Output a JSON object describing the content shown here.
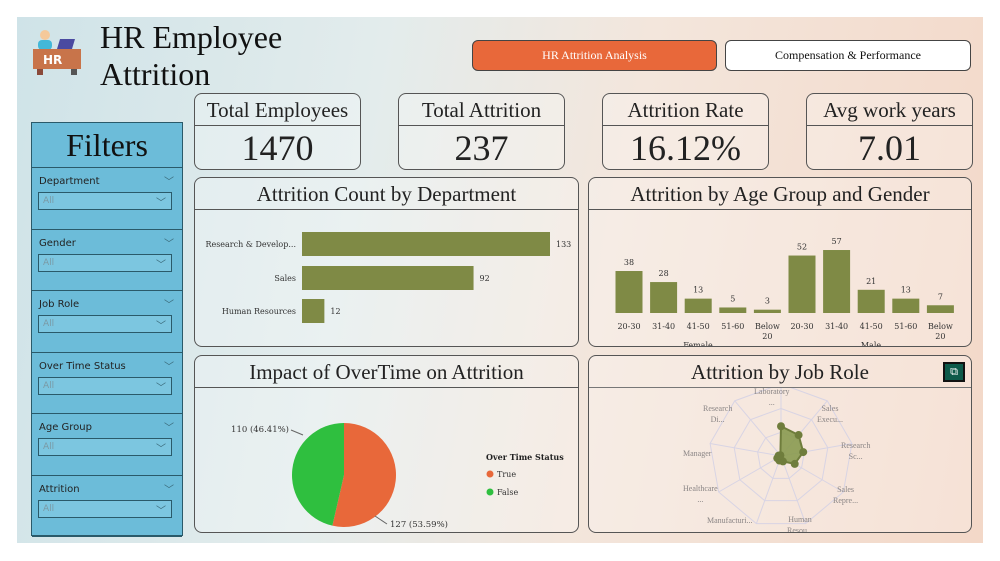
{
  "header": {
    "title_line1": "HR Employee",
    "title_line2": "Attrition",
    "logo_text": "HR"
  },
  "nav": {
    "active": "HR Attrition Analysis",
    "other": "Compensation & Performance"
  },
  "kpis": [
    {
      "label": "Total Employees",
      "value": "1470"
    },
    {
      "label": "Total Attrition",
      "value": "237"
    },
    {
      "label": "Attrition Rate",
      "value": "16.12%"
    },
    {
      "label": "Avg work years",
      "value": "7.01"
    }
  ],
  "filters": {
    "title": "Filters",
    "items": [
      {
        "label": "Department",
        "value": "All"
      },
      {
        "label": "Gender",
        "value": "All"
      },
      {
        "label": "Job Role",
        "value": "All"
      },
      {
        "label": "Over Time Status",
        "value": "All"
      },
      {
        "label": "Age Group",
        "value": "All"
      },
      {
        "label": "Attrition",
        "value": "All"
      }
    ]
  },
  "colors": {
    "bar": "#7f8a45",
    "true": "#e8683a",
    "false": "#2fbf3f",
    "filter_bg": "#6cbcd9",
    "active_nav": "#e8683a"
  },
  "chart_data": [
    {
      "type": "bar",
      "orientation": "horizontal",
      "title": "Attrition Count by Department",
      "categories": [
        "Research & Develop...",
        "Sales",
        "Human Resources"
      ],
      "values": [
        133,
        92,
        12
      ]
    },
    {
      "type": "bar",
      "title": "Attrition by Age Group and Gender",
      "groups": [
        "Female",
        "Male"
      ],
      "categories": [
        "20-30",
        "31-40",
        "41-50",
        "51-60",
        "Below 20"
      ],
      "series": [
        {
          "name": "Female",
          "values": [
            38,
            28,
            13,
            5,
            3
          ]
        },
        {
          "name": "Male",
          "values": [
            52,
            57,
            21,
            13,
            7
          ]
        }
      ]
    },
    {
      "type": "pie",
      "title": "Impact of OverTime on Attrition",
      "legend_title": "Over Time Status",
      "slices": [
        {
          "name": "True",
          "value": 127,
          "label": "127 (53.59%)"
        },
        {
          "name": "False",
          "value": 110,
          "label": "110 (46.41%)"
        }
      ]
    },
    {
      "type": "radar",
      "title": "Attrition by Job Role",
      "categories": [
        "Laboratory ...",
        "Sales Execu...",
        "Research Sc...",
        "Sales Repre...",
        "Human Resou...",
        "Manufacturi...",
        "Healthcare ...",
        "Manager",
        "Research Di..."
      ],
      "values": [
        62,
        57,
        47,
        33,
        12,
        10,
        9,
        5,
        2
      ]
    }
  ]
}
